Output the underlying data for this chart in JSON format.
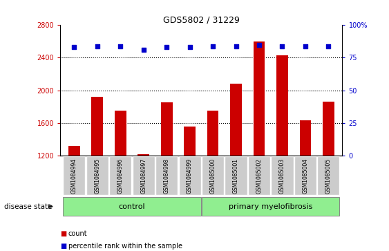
{
  "title": "GDS5802 / 31229",
  "samples": [
    "GSM1084994",
    "GSM1084995",
    "GSM1084996",
    "GSM1084997",
    "GSM1084998",
    "GSM1084999",
    "GSM1085000",
    "GSM1085001",
    "GSM1085002",
    "GSM1085003",
    "GSM1085004",
    "GSM1085005"
  ],
  "counts": [
    1320,
    1920,
    1750,
    1220,
    1850,
    1560,
    1750,
    2080,
    2600,
    2430,
    1630,
    1860
  ],
  "percentiles": [
    83,
    84,
    84,
    81,
    83,
    83,
    84,
    84,
    85,
    84,
    84,
    84
  ],
  "ylim_left": [
    1200,
    2800
  ],
  "ylim_right": [
    0,
    100
  ],
  "yticks_left": [
    1200,
    1600,
    2000,
    2400,
    2800
  ],
  "yticks_right": [
    0,
    25,
    50,
    75,
    100
  ],
  "grid_values": [
    1600,
    2000,
    2400
  ],
  "bar_color": "#cc0000",
  "dot_color": "#0000cc",
  "control_count": 6,
  "myelofibrosis_count": 6,
  "control_label": "control",
  "myelofibrosis_label": "primary myelofibrosis",
  "disease_state_label": "disease state",
  "legend_count_label": "count",
  "legend_percentile_label": "percentile rank within the sample",
  "group_bg_color": "#90ee90",
  "tick_area_bg": "#cccccc",
  "count_legend_color": "#cc0000",
  "percentile_legend_color": "#0000cc",
  "plot_bg": "#ffffff"
}
